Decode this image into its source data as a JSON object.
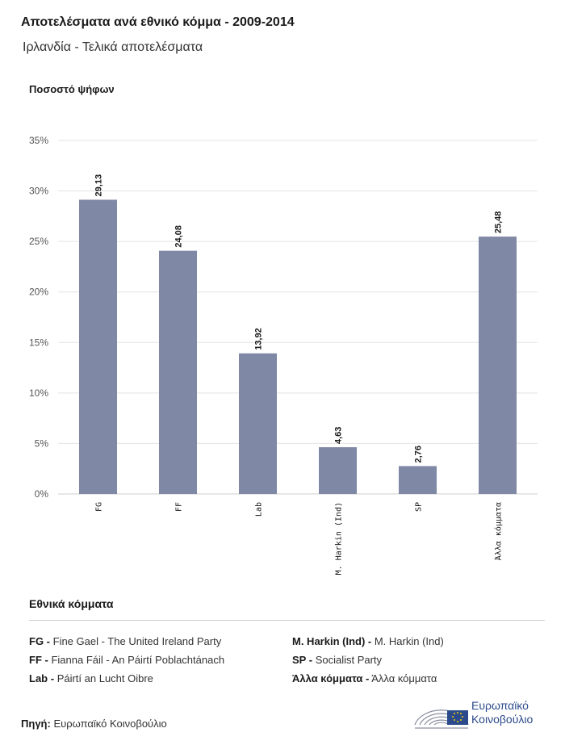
{
  "header": {
    "title": "Αποτελέσματα ανά εθνικό κόμμα - 2009-2014",
    "subtitle": "Ιρλανδία - Τελικά αποτελέσματα"
  },
  "colors": {
    "bar": "#7f88a4",
    "grid": "#e3e3e3",
    "axis": "#cfcfcf",
    "logo_blue": "#2b4a8b"
  },
  "chart_data": {
    "type": "bar",
    "ylabel": "Ποσοστό ψήφων",
    "categories": [
      "FG",
      "FF",
      "Lab",
      "M. Harkin (Ind)",
      "SP",
      "Άλλα κόμματα"
    ],
    "values": [
      29.13,
      24.08,
      13.92,
      4.63,
      2.76,
      25.48
    ],
    "value_labels": [
      "29,13",
      "24,08",
      "13,92",
      "4,63",
      "2,76",
      "25,48"
    ],
    "ylim": [
      0,
      35
    ],
    "yticks": [
      "0%",
      "5%",
      "10%",
      "15%",
      "20%",
      "25%",
      "30%",
      "35%"
    ],
    "grid": true
  },
  "legend": {
    "title": "Εθνικά κόμματα",
    "items": [
      {
        "code": "FG -",
        "name": "Fine Gael - The United Ireland Party"
      },
      {
        "code": "FF -",
        "name": "Fianna Fáil - An Páirtí Poblachtánach"
      },
      {
        "code": "Lab -",
        "name": "Páirtí an Lucht Oibre"
      },
      {
        "code": "M. Harkin (Ind) -",
        "name": "M. Harkin (Ind)"
      },
      {
        "code": "SP -",
        "name": "Socialist Party"
      },
      {
        "code": "Άλλα κόμματα -",
        "name": "Άλλα κόμματα"
      }
    ]
  },
  "footer": {
    "source_label": "Πηγή:",
    "source_value": "Ευρωπαϊκό Κοινοβούλιο",
    "logo_line1": "Ευρωπαϊκό",
    "logo_line2": "Κοινοβούλιο"
  }
}
